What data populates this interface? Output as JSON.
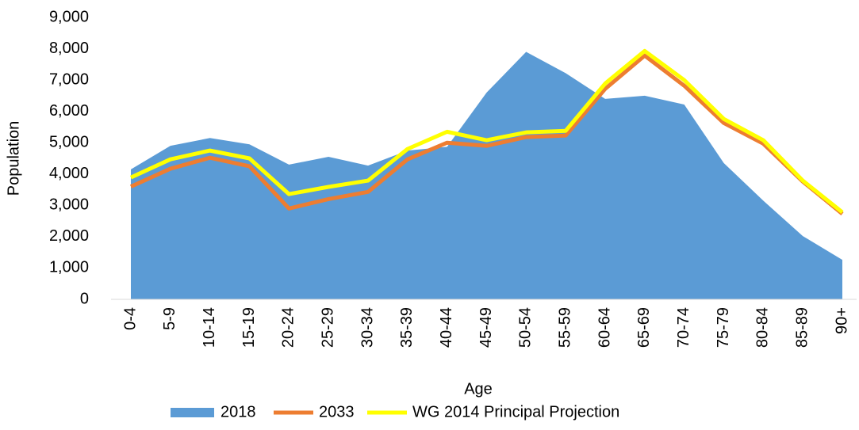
{
  "chart_data": {
    "type": "area_line",
    "x_label": "Age",
    "y_label": "Population",
    "categories": [
      "0-4",
      "5-9",
      "10-14",
      "15-19",
      "20-24",
      "25-29",
      "30-34",
      "35-39",
      "40-44",
      "45-49",
      "50-54",
      "55-59",
      "60-64",
      "65-69",
      "70-74",
      "75-79",
      "80-84",
      "85-89",
      "90+"
    ],
    "series": [
      {
        "name": "2018",
        "color": "#5b9bd5",
        "style": "area",
        "values": [
          4150,
          4900,
          5150,
          4950,
          4300,
          4550,
          4270,
          4750,
          4870,
          6600,
          7900,
          7220,
          6400,
          6500,
          6220,
          4350,
          3150,
          2020,
          1260
        ]
      },
      {
        "name": "2033",
        "color": "#ed7d31",
        "style": "line",
        "values": [
          3600,
          4170,
          4520,
          4250,
          2900,
          3200,
          3430,
          4470,
          5000,
          4900,
          5180,
          5230,
          6720,
          7780,
          6820,
          5630,
          4970,
          3760,
          2730
        ]
      },
      {
        "name": "WG 2014 Principal Projection",
        "color": "#ffff00",
        "style": "line",
        "values": [
          3890,
          4470,
          4750,
          4500,
          3360,
          3590,
          3790,
          4800,
          5350,
          5080,
          5330,
          5380,
          6890,
          7930,
          7000,
          5760,
          5080,
          3790,
          2780
        ]
      }
    ],
    "ylim": [
      0,
      9000
    ],
    "yticks": [
      0,
      {
        "value": 1000,
        "label": "1,000"
      },
      {
        "value": 2000,
        "label": "2,000"
      },
      {
        "value": 3000,
        "label": "3,000"
      },
      {
        "value": 4000,
        "label": "4,000"
      },
      {
        "value": 5000,
        "label": "5,000"
      },
      {
        "value": 6000,
        "label": "6,000"
      },
      {
        "value": 7000,
        "label": "7,000"
      },
      {
        "value": 8000,
        "label": "8,000"
      },
      {
        "value": 9000,
        "label": "9,000"
      }
    ],
    "grid": false,
    "legend": "bottom"
  }
}
